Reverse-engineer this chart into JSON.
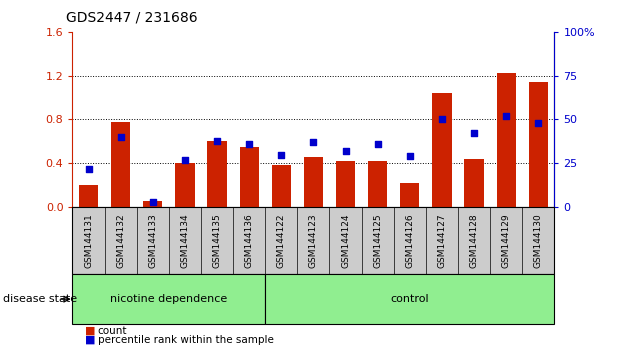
{
  "title": "GDS2447 / 231686",
  "samples": [
    "GSM144131",
    "GSM144132",
    "GSM144133",
    "GSM144134",
    "GSM144135",
    "GSM144136",
    "GSM144122",
    "GSM144123",
    "GSM144124",
    "GSM144125",
    "GSM144126",
    "GSM144127",
    "GSM144128",
    "GSM144129",
    "GSM144130"
  ],
  "count_values": [
    0.2,
    0.78,
    0.06,
    0.4,
    0.6,
    0.55,
    0.38,
    0.46,
    0.42,
    0.42,
    0.22,
    1.04,
    0.44,
    1.22,
    1.14
  ],
  "percentile_values": [
    22,
    40,
    3,
    27,
    38,
    36,
    30,
    37,
    32,
    36,
    29,
    50,
    42,
    52,
    48
  ],
  "nicotine_count": 6,
  "bar_color": "#CC2200",
  "marker_color": "#0000CC",
  "ylim_left": [
    0,
    1.6
  ],
  "ylim_right": [
    0,
    100
  ],
  "yticks_left": [
    0,
    0.4,
    0.8,
    1.2,
    1.6
  ],
  "yticks_right": [
    0,
    25,
    50,
    75,
    100
  ],
  "label_box_color": "#cccccc",
  "group_box_color": "#90EE90",
  "disease_state_label": "disease state",
  "group_labels": [
    "nicotine dependence",
    "control"
  ]
}
